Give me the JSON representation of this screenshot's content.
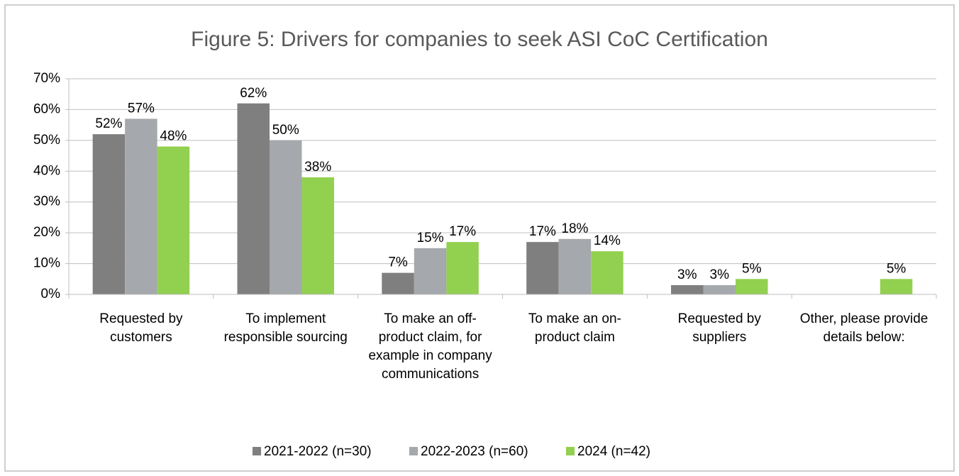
{
  "chart_data": {
    "type": "bar",
    "title": "Figure 5: Drivers for companies to seek ASI CoC Certification",
    "categories": [
      "Requested by customers",
      "To implement responsible sourcing",
      "To make an off-product claim, for example in company communications",
      "To make an on-product claim",
      "Requested by suppliers",
      "Other, please provide details below:"
    ],
    "series": [
      {
        "name": "2021-2022 (n=30)",
        "color": "#7f7f7f",
        "values": [
          52,
          62,
          7,
          17,
          3,
          null
        ],
        "value_labels": [
          "52%",
          "62%",
          "7%",
          "17%",
          "3%",
          null
        ]
      },
      {
        "name": "2022-2023 (n=60)",
        "color": "#a5a8ac",
        "values": [
          57,
          50,
          15,
          18,
          3,
          null
        ],
        "value_labels": [
          "57%",
          "50%",
          "15%",
          "18%",
          "3%",
          null
        ]
      },
      {
        "name": "2024 (n=42)",
        "color": "#92d050",
        "values": [
          48,
          38,
          17,
          14,
          5,
          5
        ],
        "value_labels": [
          "48%",
          "38%",
          "17%",
          "14%",
          "5%",
          "5%"
        ]
      }
    ],
    "ylim": [
      0,
      70
    ],
    "yticks": [
      {
        "value": 0,
        "label": "0%"
      },
      {
        "value": 10,
        "label": "10%"
      },
      {
        "value": 20,
        "label": "20%"
      },
      {
        "value": 30,
        "label": "30%"
      },
      {
        "value": 40,
        "label": "40%"
      },
      {
        "value": 50,
        "label": "50%"
      },
      {
        "value": 60,
        "label": "60%"
      },
      {
        "value": 70,
        "label": "70%"
      }
    ],
    "grid": true,
    "legend": "bottom"
  }
}
